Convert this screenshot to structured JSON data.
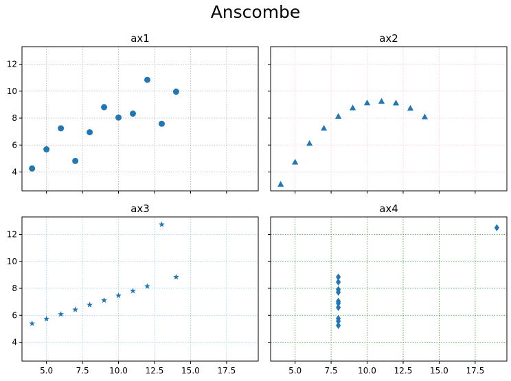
{
  "title": "Anscombe",
  "chart_data": [
    {
      "type": "scatter",
      "title": "ax1",
      "marker": "circle",
      "color": "#1f77b4",
      "grid": true,
      "grid_color": "#b0b0b0",
      "xlim": [
        3.3,
        19.7
      ],
      "ylim": [
        2.6,
        13.3
      ],
      "xticks": [
        5,
        7.5,
        10,
        12.5,
        15,
        17.5
      ],
      "xtick_labels": [],
      "yticks": [
        4,
        6,
        8,
        10,
        12
      ],
      "ytick_labels": [
        "4",
        "6",
        "8",
        "10",
        "12"
      ],
      "x": [
        10,
        8,
        13,
        9,
        11,
        14,
        6,
        4,
        12,
        7,
        5
      ],
      "y": [
        8.04,
        6.95,
        7.58,
        8.81,
        8.33,
        9.96,
        7.24,
        4.26,
        10.84,
        4.82,
        5.68
      ]
    },
    {
      "type": "scatter",
      "title": "ax2",
      "marker": "triangle",
      "color": "#1f77b4",
      "grid": true,
      "grid_color": "#ffc0cb",
      "xlim": [
        3.3,
        19.7
      ],
      "ylim": [
        2.6,
        13.3
      ],
      "xticks": [
        5,
        7.5,
        10,
        12.5,
        15,
        17.5
      ],
      "xtick_labels": [],
      "yticks": [
        4,
        6,
        8,
        10,
        12
      ],
      "ytick_labels": [],
      "x": [
        10,
        8,
        13,
        9,
        11,
        14,
        6,
        4,
        12,
        7,
        5
      ],
      "y": [
        9.14,
        8.14,
        8.74,
        8.77,
        9.26,
        8.1,
        6.13,
        3.1,
        9.13,
        7.26,
        4.74
      ]
    },
    {
      "type": "scatter",
      "title": "ax3",
      "marker": "star",
      "color": "#1f77b4",
      "grid": true,
      "grid_color": "#87ceeb",
      "xlim": [
        3.3,
        19.7
      ],
      "ylim": [
        2.6,
        13.3
      ],
      "xticks": [
        5,
        7.5,
        10,
        12.5,
        15,
        17.5
      ],
      "xtick_labels": [
        "5.0",
        "7.5",
        "10.0",
        "12.5",
        "15.0",
        "17.5"
      ],
      "yticks": [
        4,
        6,
        8,
        10,
        12
      ],
      "ytick_labels": [
        "4",
        "6",
        "8",
        "10",
        "12"
      ],
      "x": [
        10,
        8,
        13,
        9,
        11,
        14,
        6,
        4,
        12,
        7,
        5
      ],
      "y": [
        7.46,
        6.77,
        12.74,
        7.11,
        7.81,
        8.84,
        6.08,
        5.39,
        8.15,
        6.42,
        5.73
      ]
    },
    {
      "type": "scatter",
      "title": "ax4",
      "marker": "diamond",
      "color": "#1f77b4",
      "grid": true,
      "grid_color": "#2ca02c",
      "xlim": [
        3.3,
        19.7
      ],
      "ylim": [
        2.6,
        13.3
      ],
      "xticks": [
        5,
        7.5,
        10,
        12.5,
        15,
        17.5
      ],
      "xtick_labels": [
        "5.0",
        "7.5",
        "10.0",
        "12.5",
        "15.0",
        "17.5"
      ],
      "yticks": [
        4,
        6,
        8,
        10,
        12
      ],
      "ytick_labels": [],
      "x": [
        8,
        8,
        8,
        8,
        8,
        8,
        8,
        19,
        8,
        8,
        8
      ],
      "y": [
        6.58,
        5.76,
        7.71,
        8.84,
        8.47,
        7.04,
        5.25,
        12.5,
        5.56,
        7.91,
        6.89
      ]
    }
  ]
}
